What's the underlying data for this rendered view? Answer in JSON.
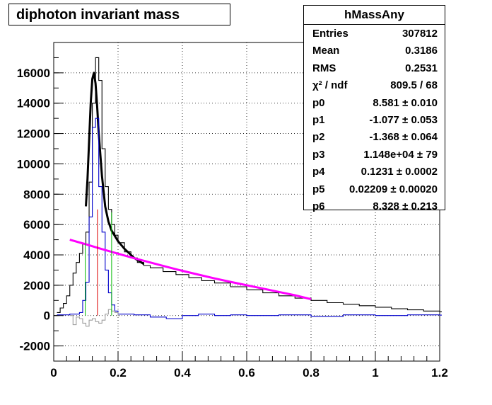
{
  "title": "diphoton invariant mass",
  "stats": {
    "name": "hMassAny",
    "rows": [
      {
        "key": "Entries",
        "value": "307812"
      },
      {
        "key": "Mean",
        "value": "0.3186"
      },
      {
        "key": "RMS",
        "value": "0.2531"
      },
      {
        "key": "χ² / ndf",
        "value": "809.5 / 68"
      },
      {
        "key": "p0",
        "value": "8.581 ± 0.010"
      },
      {
        "key": "p1",
        "value": "-1.077 ± 0.053"
      },
      {
        "key": "p2",
        "value": "-1.368 ± 0.064"
      },
      {
        "key": "p3",
        "value": "1.148e+04 ± 79"
      },
      {
        "key": "p4",
        "value": "0.1231 ± 0.0002"
      },
      {
        "key": "p5",
        "value": "0.02209 ± 0.00020"
      },
      {
        "key": "p6",
        "value": "8.328 ± 0.213"
      }
    ]
  },
  "chart_data": {
    "type": "line",
    "title": "diphoton invariant mass",
    "xlabel": "",
    "ylabel": "",
    "xlim": [
      0,
      1.2
    ],
    "ylim": [
      -3000,
      18000
    ],
    "grid": true,
    "xticks": [
      0,
      0.2,
      0.4,
      0.6,
      0.8,
      1,
      1.2
    ],
    "xtick_labels": [
      "0",
      "0.2",
      "0.4",
      "0.6",
      "0.8",
      "1",
      "1.2"
    ],
    "yticks": [
      -2000,
      0,
      2000,
      4000,
      6000,
      8000,
      10000,
      12000,
      14000,
      16000
    ],
    "ytick_labels": [
      "-2000",
      "0",
      "2000",
      "4000",
      "6000",
      "8000",
      "10000",
      "12000",
      "14000",
      "16000"
    ],
    "series": [
      {
        "color": "#000000",
        "style": "histogram",
        "points": [
          [
            0.01,
            200
          ],
          [
            0.02,
            500
          ],
          [
            0.03,
            800
          ],
          [
            0.04,
            1300
          ],
          [
            0.05,
            2000
          ],
          [
            0.06,
            2800
          ],
          [
            0.07,
            3500
          ],
          [
            0.08,
            4100
          ],
          [
            0.09,
            4700
          ],
          [
            0.1,
            5500
          ],
          [
            0.11,
            8800
          ],
          [
            0.12,
            14000
          ],
          [
            0.13,
            17000
          ],
          [
            0.14,
            15500
          ],
          [
            0.15,
            11000
          ],
          [
            0.16,
            8500
          ],
          [
            0.17,
            7000
          ],
          [
            0.18,
            6000
          ],
          [
            0.19,
            5300
          ],
          [
            0.2,
            4800
          ],
          [
            0.22,
            4200
          ],
          [
            0.24,
            3800
          ],
          [
            0.26,
            3500
          ],
          [
            0.28,
            3300
          ],
          [
            0.3,
            3150
          ],
          [
            0.34,
            2900
          ],
          [
            0.38,
            2700
          ],
          [
            0.42,
            2500
          ],
          [
            0.46,
            2300
          ],
          [
            0.5,
            2150
          ],
          [
            0.55,
            1900
          ],
          [
            0.6,
            1700
          ],
          [
            0.65,
            1500
          ],
          [
            0.7,
            1300
          ],
          [
            0.75,
            1150
          ],
          [
            0.8,
            1000
          ],
          [
            0.85,
            850
          ],
          [
            0.9,
            750
          ],
          [
            0.95,
            650
          ],
          [
            1.0,
            550
          ],
          [
            1.05,
            450
          ],
          [
            1.1,
            380
          ],
          [
            1.15,
            300
          ],
          [
            1.2,
            250
          ]
        ]
      },
      {
        "color": "#000000",
        "style": "fit",
        "points": [
          [
            0.1,
            7200
          ],
          [
            0.105,
            9000
          ],
          [
            0.11,
            11500
          ],
          [
            0.115,
            14000
          ],
          [
            0.12,
            15600
          ],
          [
            0.125,
            16000
          ],
          [
            0.13,
            15300
          ],
          [
            0.135,
            13800
          ],
          [
            0.14,
            12000
          ],
          [
            0.15,
            9200
          ],
          [
            0.16,
            7200
          ],
          [
            0.17,
            6200
          ],
          [
            0.18,
            5600
          ],
          [
            0.2,
            4900
          ],
          [
            0.22,
            4400
          ],
          [
            0.25,
            3800
          ],
          [
            0.28,
            3400
          ]
        ]
      },
      {
        "color": "#0000cc",
        "style": "histogram",
        "points": [
          [
            0.01,
            50
          ],
          [
            0.05,
            100
          ],
          [
            0.08,
            200
          ],
          [
            0.09,
            1000
          ],
          [
            0.1,
            2200
          ],
          [
            0.11,
            6500
          ],
          [
            0.12,
            12400
          ],
          [
            0.13,
            13000
          ],
          [
            0.14,
            8500
          ],
          [
            0.15,
            5500
          ],
          [
            0.16,
            3000
          ],
          [
            0.17,
            1500
          ],
          [
            0.18,
            700
          ],
          [
            0.19,
            300
          ],
          [
            0.2,
            100
          ],
          [
            0.25,
            50
          ],
          [
            0.3,
            -100
          ],
          [
            0.35,
            -200
          ],
          [
            0.4,
            0
          ],
          [
            0.45,
            100
          ],
          [
            0.5,
            0
          ],
          [
            0.55,
            50
          ],
          [
            0.6,
            0
          ],
          [
            0.7,
            50
          ],
          [
            0.8,
            -50
          ],
          [
            0.9,
            50
          ],
          [
            1.0,
            0
          ],
          [
            1.1,
            50
          ],
          [
            1.2,
            30
          ]
        ]
      },
      {
        "color": "#9e9e9e",
        "style": "histogram",
        "points": [
          [
            0.05,
            0
          ],
          [
            0.06,
            -600
          ],
          [
            0.07,
            -100
          ],
          [
            0.08,
            -200
          ],
          [
            0.09,
            -500
          ],
          [
            0.1,
            -700
          ],
          [
            0.11,
            -300
          ],
          [
            0.12,
            -200
          ],
          [
            0.13,
            -400
          ],
          [
            0.14,
            -500
          ],
          [
            0.15,
            -300
          ],
          [
            0.16,
            100
          ],
          [
            0.17,
            400
          ],
          [
            0.18,
            300
          ],
          [
            0.19,
            200
          ],
          [
            0.2,
            0
          ]
        ]
      },
      {
        "color": "#ff00ff",
        "style": "line",
        "points": [
          [
            0.05,
            5000
          ],
          [
            0.1,
            4700
          ],
          [
            0.15,
            4380
          ],
          [
            0.2,
            4080
          ],
          [
            0.25,
            3780
          ],
          [
            0.3,
            3500
          ],
          [
            0.35,
            3220
          ],
          [
            0.4,
            2950
          ],
          [
            0.45,
            2700
          ],
          [
            0.5,
            2450
          ],
          [
            0.55,
            2220
          ],
          [
            0.6,
            2000
          ],
          [
            0.65,
            1780
          ],
          [
            0.7,
            1560
          ],
          [
            0.75,
            1340
          ],
          [
            0.8,
            1080
          ]
        ]
      },
      {
        "color": "#00bb00",
        "style": "vline",
        "x": 0.098,
        "y": 4750
      },
      {
        "color": "#00bb00",
        "style": "vline",
        "x": 0.18,
        "y": 6800
      },
      {
        "color": "#dd0000",
        "style": "vline",
        "x": 0.136,
        "y": 7000
      }
    ]
  }
}
